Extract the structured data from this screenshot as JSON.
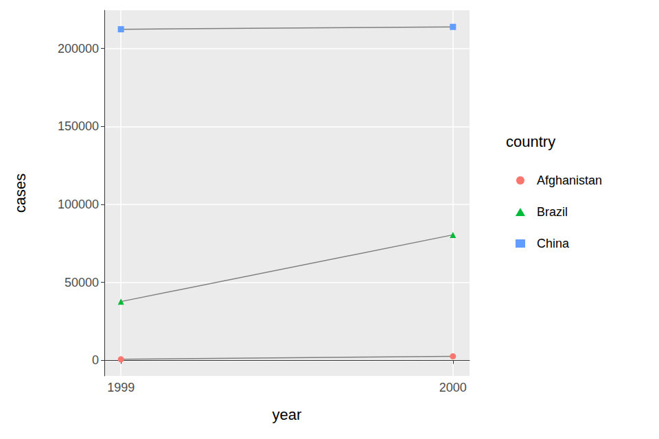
{
  "chart_data": {
    "type": "line",
    "x_label": "year",
    "y_label": "cases",
    "legend_title": "country",
    "x": [
      1999,
      2000
    ],
    "xlim": [
      1998.95,
      2000.05
    ],
    "xticks": [
      1999,
      2000
    ],
    "ylim": [
      -9906,
      224417
    ],
    "yticks": [
      0,
      50000,
      100000,
      150000,
      200000
    ],
    "grid": true,
    "legend": "right",
    "series": [
      {
        "name": "Afghanistan",
        "color": "#F8766D",
        "marker": "circle",
        "values": [
          745,
          2666
        ]
      },
      {
        "name": "Brazil",
        "color": "#00BA38",
        "marker": "triangle",
        "values": [
          37737,
          80488
        ]
      },
      {
        "name": "China",
        "color": "#619CFF",
        "marker": "square",
        "values": [
          212258,
          213766
        ]
      }
    ]
  }
}
